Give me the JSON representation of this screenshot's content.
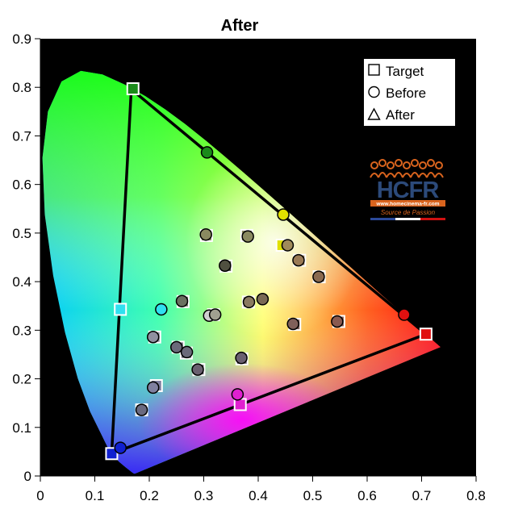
{
  "chart_data": {
    "type": "scatter",
    "title": "After",
    "xlabel": "",
    "ylabel": "",
    "xlim": [
      0,
      0.8
    ],
    "ylim": [
      0,
      0.9
    ],
    "x_ticks": [
      "0",
      "0.1",
      "0.2",
      "0.3",
      "0.4",
      "0.5",
      "0.6",
      "0.7",
      "0.8"
    ],
    "y_ticks": [
      "0",
      "0.1",
      "0.2",
      "0.3",
      "0.4",
      "0.5",
      "0.6",
      "0.7",
      "0.8",
      "0.9"
    ],
    "grid": false,
    "background": "#000000",
    "legend_position": "top-right",
    "legend": [
      {
        "name": "Target",
        "marker": "square"
      },
      {
        "name": "Before",
        "marker": "circle"
      },
      {
        "name": "After",
        "marker": "triangle"
      }
    ],
    "gamut_triangle": [
      [
        0.167,
        0.796
      ],
      [
        0.708,
        0.292
      ],
      [
        0.131,
        0.046
      ]
    ],
    "series": [
      {
        "name": "Target",
        "marker": "square",
        "points": [
          {
            "x": 0.17,
            "y": 0.797,
            "color": "#1a8a1a"
          },
          {
            "x": 0.708,
            "y": 0.292,
            "color": "#e01010"
          },
          {
            "x": 0.131,
            "y": 0.046,
            "color": "#1020d0"
          },
          {
            "x": 0.147,
            "y": 0.343,
            "color": "#30e0f0"
          },
          {
            "x": 0.367,
            "y": 0.147,
            "color": "#e020d0"
          },
          {
            "x": 0.444,
            "y": 0.475,
            "color": "#e0e000"
          },
          {
            "x": 0.305,
            "y": 0.495,
            "color": "#8a8a60"
          },
          {
            "x": 0.379,
            "y": 0.495,
            "color": "#8a8a60"
          },
          {
            "x": 0.341,
            "y": 0.432,
            "color": "#505040"
          },
          {
            "x": 0.262,
            "y": 0.359,
            "color": "#6a7060"
          },
          {
            "x": 0.318,
            "y": 0.332,
            "color": "#bdbdbd"
          },
          {
            "x": 0.21,
            "y": 0.286,
            "color": "#9090a0"
          },
          {
            "x": 0.382,
            "y": 0.358,
            "color": "#8a7a60"
          },
          {
            "x": 0.467,
            "y": 0.312,
            "color": "#80605a"
          },
          {
            "x": 0.548,
            "y": 0.318,
            "color": "#8a5a50"
          },
          {
            "x": 0.512,
            "y": 0.41,
            "color": "#8a6a50"
          },
          {
            "x": 0.476,
            "y": 0.444,
            "color": "#9a7a55"
          },
          {
            "x": 0.253,
            "y": 0.265,
            "color": "#6a6a7a"
          },
          {
            "x": 0.268,
            "y": 0.253,
            "color": "#6a6a7a"
          },
          {
            "x": 0.291,
            "y": 0.219,
            "color": "#6a6070"
          },
          {
            "x": 0.37,
            "y": 0.241,
            "color": "#6a6070"
          },
          {
            "x": 0.213,
            "y": 0.186,
            "color": "#8080a0"
          },
          {
            "x": 0.186,
            "y": 0.136,
            "color": "#6a6a80"
          }
        ]
      },
      {
        "name": "Before",
        "marker": "circle",
        "points": [
          {
            "x": 0.306,
            "y": 0.666,
            "color": "#1a8a1a"
          },
          {
            "x": 0.668,
            "y": 0.332,
            "color": "#e01010"
          },
          {
            "x": 0.147,
            "y": 0.058,
            "color": "#1020d0"
          },
          {
            "x": 0.222,
            "y": 0.343,
            "color": "#30e0f0"
          },
          {
            "x": 0.362,
            "y": 0.168,
            "color": "#e020d0"
          },
          {
            "x": 0.446,
            "y": 0.538,
            "color": "#e0e000"
          },
          {
            "x": 0.304,
            "y": 0.497,
            "color": "#8a8a60"
          },
          {
            "x": 0.381,
            "y": 0.493,
            "color": "#8a8a60"
          },
          {
            "x": 0.339,
            "y": 0.433,
            "color": "#505040"
          },
          {
            "x": 0.26,
            "y": 0.36,
            "color": "#6a7060"
          },
          {
            "x": 0.31,
            "y": 0.33,
            "color": "#d0d0d0"
          },
          {
            "x": 0.321,
            "y": 0.332,
            "color": "#a0a090"
          },
          {
            "x": 0.207,
            "y": 0.286,
            "color": "#9090a0"
          },
          {
            "x": 0.383,
            "y": 0.358,
            "color": "#8a7a60"
          },
          {
            "x": 0.408,
            "y": 0.364,
            "color": "#7a6a55"
          },
          {
            "x": 0.464,
            "y": 0.313,
            "color": "#80605a"
          },
          {
            "x": 0.545,
            "y": 0.318,
            "color": "#8a5a50"
          },
          {
            "x": 0.511,
            "y": 0.41,
            "color": "#8a6a50"
          },
          {
            "x": 0.474,
            "y": 0.444,
            "color": "#9a7a55"
          },
          {
            "x": 0.454,
            "y": 0.475,
            "color": "#a08a5a"
          },
          {
            "x": 0.25,
            "y": 0.265,
            "color": "#6a6a7a"
          },
          {
            "x": 0.269,
            "y": 0.255,
            "color": "#6a6a7a"
          },
          {
            "x": 0.289,
            "y": 0.219,
            "color": "#6a6070"
          },
          {
            "x": 0.369,
            "y": 0.243,
            "color": "#6a6070"
          },
          {
            "x": 0.207,
            "y": 0.182,
            "color": "#8080a0"
          },
          {
            "x": 0.186,
            "y": 0.136,
            "color": "#6a6a80"
          }
        ]
      }
    ]
  },
  "logo": {
    "brand": "HCFR",
    "url": "www.homecinema-fr.com",
    "tagline": "Source de Passion"
  }
}
